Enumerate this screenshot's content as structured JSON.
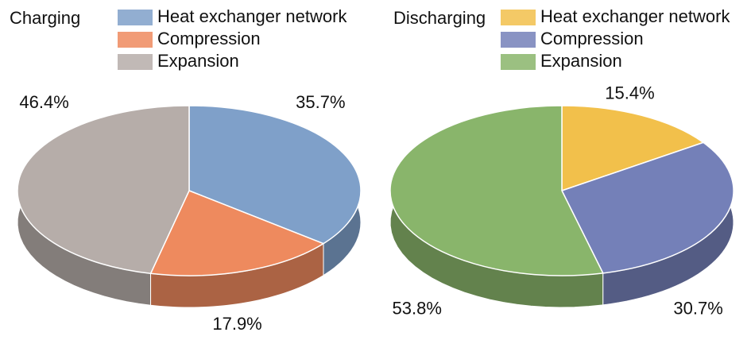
{
  "chart_data": [
    {
      "type": "pie",
      "title": "Charging",
      "categories": [
        "Heat exchanger network",
        "Compression",
        "Expansion"
      ],
      "values": [
        35.7,
        17.9,
        46.4
      ],
      "value_labels": [
        "35.7%",
        "17.9%",
        "46.4%"
      ],
      "colors": [
        "#7fa0c9",
        "#ee8a5e",
        "#b6ada9"
      ]
    },
    {
      "type": "pie",
      "title": "Discharging",
      "categories": [
        "Heat exchanger network",
        "Compression",
        "Expansion"
      ],
      "values": [
        15.4,
        30.7,
        53.8
      ],
      "value_labels": [
        "15.4%",
        "30.7%",
        "53.8%"
      ],
      "colors": [
        "#f2c04b",
        "#7480b8",
        "#89b56b"
      ]
    }
  ]
}
